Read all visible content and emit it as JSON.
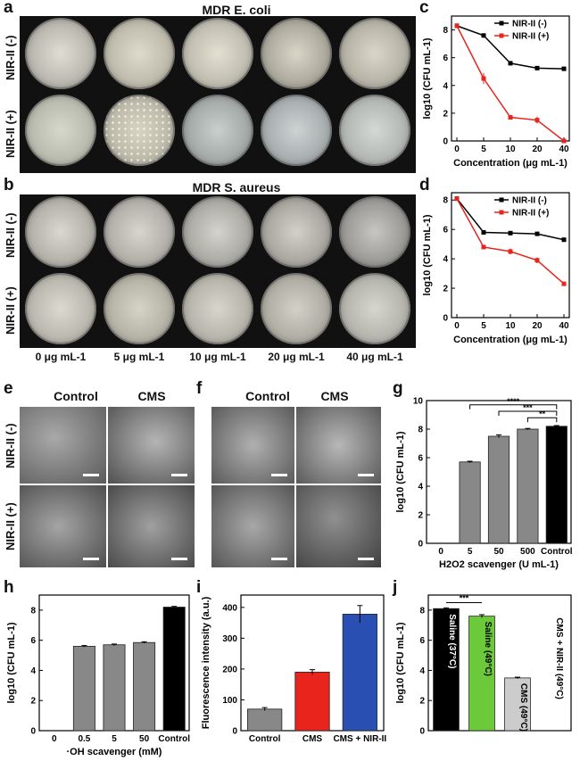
{
  "panels": {
    "a": "a",
    "b": "b",
    "c": "c",
    "d": "d",
    "e": "e",
    "f": "f",
    "g": "g",
    "h": "h",
    "i": "i",
    "j": "j"
  },
  "panel_a": {
    "title": "MDR E. coli",
    "rows": [
      "NIR-II (-)",
      "NIR-II (+)"
    ]
  },
  "panel_b": {
    "title": "MDR S. aureus",
    "rows": [
      "NIR-II (-)",
      "NIR-II (+)"
    ],
    "concentrations": [
      "0 μg mL-1",
      "5 μg mL-1",
      "10 μg mL-1",
      "20 μg mL-1",
      "40 μg mL-1"
    ]
  },
  "panel_e": {
    "cols": [
      "Control",
      "CMS"
    ],
    "rows": [
      "NIR-II (-)",
      "NIR-II (+)"
    ]
  },
  "panel_f": {
    "cols": [
      "Control",
      "CMS"
    ]
  },
  "chart_data": [
    {
      "id": "c",
      "type": "line",
      "x": [
        0,
        5,
        10,
        20,
        40
      ],
      "xticks": [
        "0",
        "5",
        "10",
        "20",
        "40"
      ],
      "series": [
        {
          "name": "NIR-II (-)",
          "color": "#000000",
          "values": [
            8.3,
            7.6,
            5.6,
            5.25,
            5.2
          ],
          "err": [
            0.1,
            0.1,
            0.15,
            0.08,
            0.08
          ]
        },
        {
          "name": "NIR-II (+)",
          "color": "#e8241d",
          "values": [
            8.3,
            4.5,
            1.7,
            1.5,
            0.0
          ],
          "err": [
            0.1,
            0.4,
            0.1,
            0.25,
            0.0
          ]
        }
      ],
      "xlabel": "Concentration (μg mL-1)",
      "ylabel": "log10 (CFU mL-1)",
      "ylim": [
        0,
        9
      ],
      "yticks": [
        0,
        2,
        4,
        6,
        8
      ],
      "legend": "top-right"
    },
    {
      "id": "d",
      "type": "line",
      "x": [
        0,
        5,
        10,
        20,
        40
      ],
      "xticks": [
        "0",
        "5",
        "10",
        "20",
        "40"
      ],
      "series": [
        {
          "name": "NIR-II (-)",
          "color": "#000000",
          "values": [
            8.1,
            5.8,
            5.75,
            5.7,
            5.3
          ],
          "err": [
            0.1,
            0.1,
            0.08,
            0.08,
            0.15
          ]
        },
        {
          "name": "NIR-II (+)",
          "color": "#e8241d",
          "values": [
            8.1,
            4.8,
            4.5,
            3.9,
            2.3
          ],
          "err": [
            0.1,
            0.1,
            0.2,
            0.2,
            0.1
          ]
        }
      ],
      "xlabel": "Concentration (μg mL-1)",
      "ylabel": "log10 (CFU mL-1)",
      "ylim": [
        0,
        8.5
      ],
      "yticks": [
        0,
        2,
        4,
        6,
        8
      ],
      "legend": "top-right"
    },
    {
      "id": "g",
      "type": "bar",
      "categories": [
        "0",
        "5",
        "50",
        "500",
        "Control"
      ],
      "values": [
        0,
        5.7,
        7.5,
        8.0,
        8.2
      ],
      "err": [
        0,
        0.05,
        0.1,
        0.05,
        0.05
      ],
      "colors": [
        "#888888",
        "#888888",
        "#888888",
        "#888888",
        "#000000"
      ],
      "xlabel": "H2O2 scavenger (U mL-1)",
      "ylabel": "log10 (CFU mL-1)",
      "ylim": [
        0,
        10
      ],
      "yticks": [
        0,
        2,
        4,
        6,
        8,
        10
      ],
      "significance": [
        "****",
        "***",
        "**"
      ]
    },
    {
      "id": "h",
      "type": "bar",
      "categories": [
        "0",
        "0.5",
        "5",
        "50",
        "Control"
      ],
      "values": [
        0,
        5.6,
        5.7,
        5.85,
        8.2
      ],
      "err": [
        0,
        0.05,
        0.05,
        0.05,
        0.05
      ],
      "colors": [
        "#888888",
        "#888888",
        "#888888",
        "#888888",
        "#000000"
      ],
      "xlabel": "·OH scavenger (mM)",
      "ylabel": "log10 (CFU mL-1)",
      "ylim": [
        0,
        9
      ],
      "yticks": [
        0,
        2,
        4,
        6,
        8
      ]
    },
    {
      "id": "i",
      "type": "bar",
      "categories": [
        "Control",
        "CMS",
        "CMS + NIR-II"
      ],
      "values": [
        70,
        190,
        378
      ],
      "err": [
        5,
        8,
        28
      ],
      "colors": [
        "#888888",
        "#e8241d",
        "#2a4fb3"
      ],
      "xlabel": "",
      "ylabel": "Fluorescence intensity (a.u.)",
      "ylim": [
        0,
        440
      ],
      "yticks": [
        0,
        100,
        200,
        300,
        400
      ]
    },
    {
      "id": "j",
      "type": "bar",
      "categories": [
        "Saline (37°C)",
        "Saline (49°C)",
        "CMS (49°C)",
        "CMS + NIR-II (49°C)"
      ],
      "values": [
        8.1,
        7.6,
        3.5,
        0
      ],
      "err": [
        0.05,
        0.1,
        0.05,
        0
      ],
      "colors": [
        "#000000",
        "#6cc93a",
        "#cccccc",
        "#ffffff"
      ],
      "xlabel": "",
      "ylabel": "log10 (CFU mL-1)",
      "ylim": [
        0,
        9
      ],
      "yticks": [
        0,
        2,
        4,
        6,
        8
      ],
      "significance": [
        "***"
      ]
    }
  ]
}
